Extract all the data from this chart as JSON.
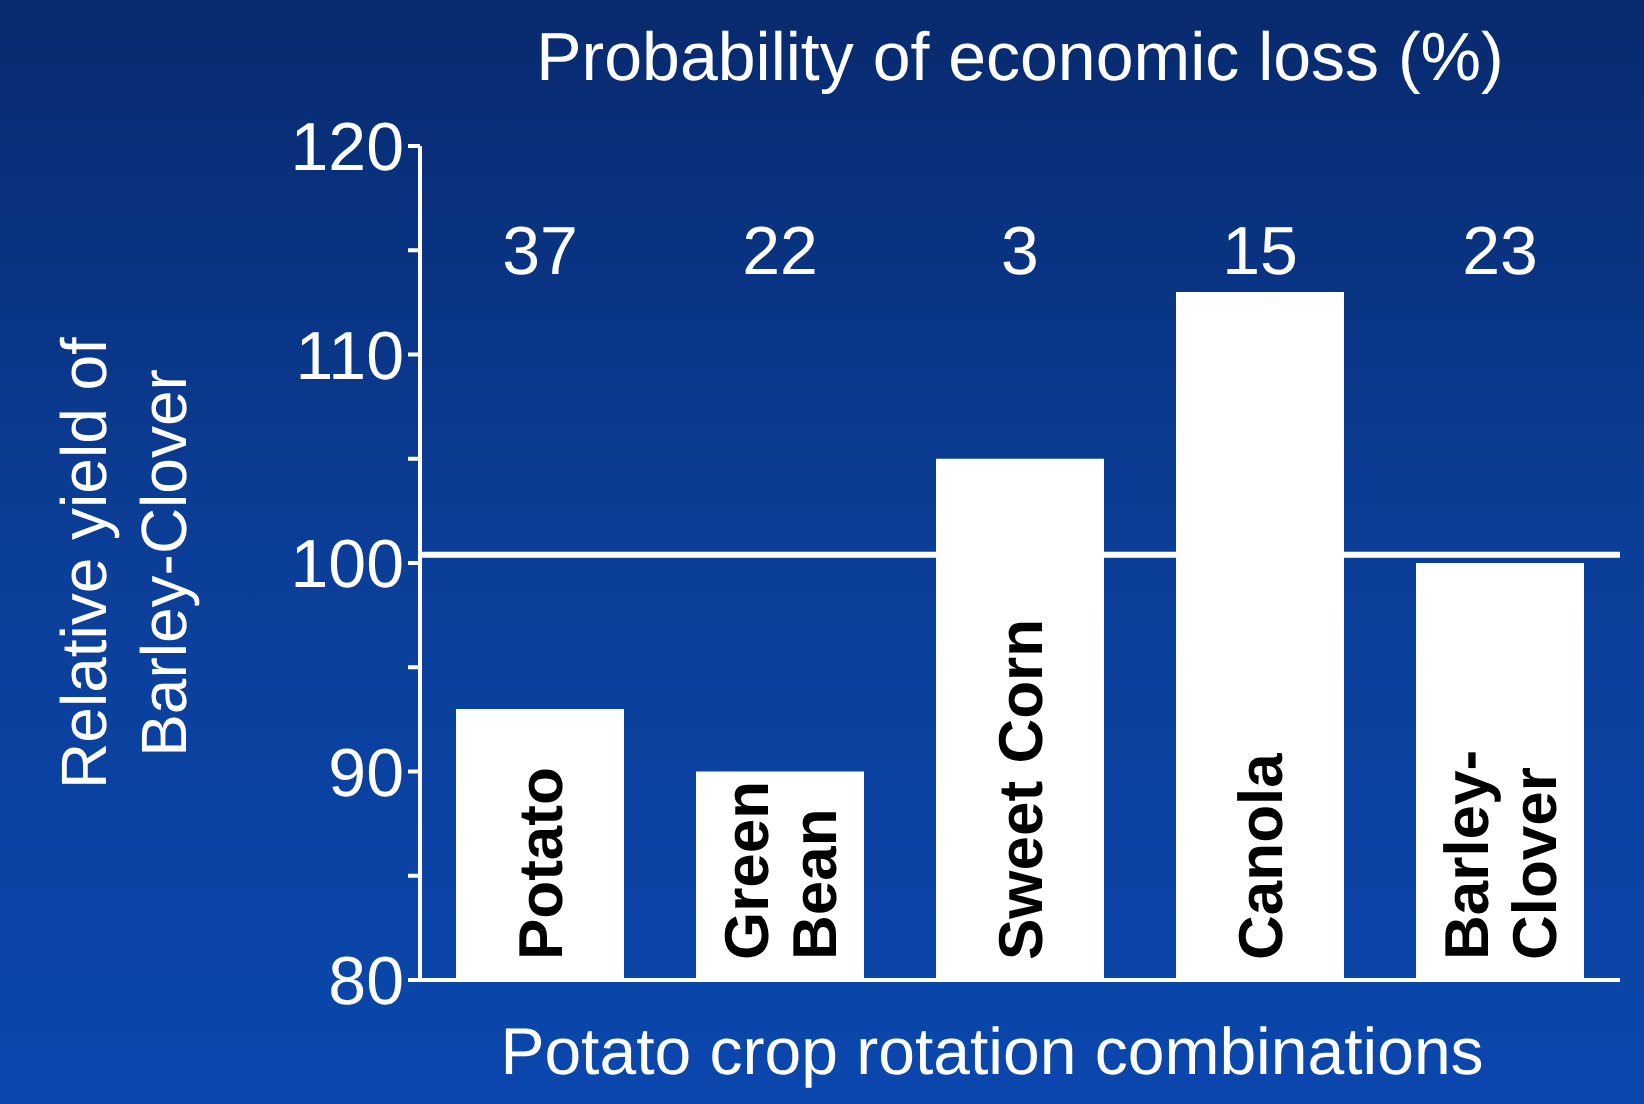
{
  "chart_data": {
    "type": "bar",
    "title": "Probability of economic loss (%)",
    "xlabel": "Potato crop rotation combinations",
    "ylabel": "Relative yield of Barley-Clover",
    "categories": [
      "Potato",
      "Green Bean",
      "Sweet Corn",
      "Canola",
      "Barley-Clover"
    ],
    "values": [
      93,
      90,
      105,
      113,
      100
    ],
    "color": "#ffffff",
    "ylim": [
      80,
      120
    ],
    "yticks": [
      80,
      {
        "value": 85,
        "label": null
      },
      90,
      {
        "value": 95,
        "label": null
      },
      100,
      {
        "value": 105,
        "label": null
      },
      110,
      {
        "value": 115,
        "label": null
      },
      120
    ],
    "grid": false,
    "legend": false,
    "ref_lines": [
      {
        "axis": "y",
        "value": 100.4,
        "color": "#ffffff"
      }
    ],
    "annotations": [
      "37",
      "22",
      "3",
      "15",
      "23"
    ]
  }
}
